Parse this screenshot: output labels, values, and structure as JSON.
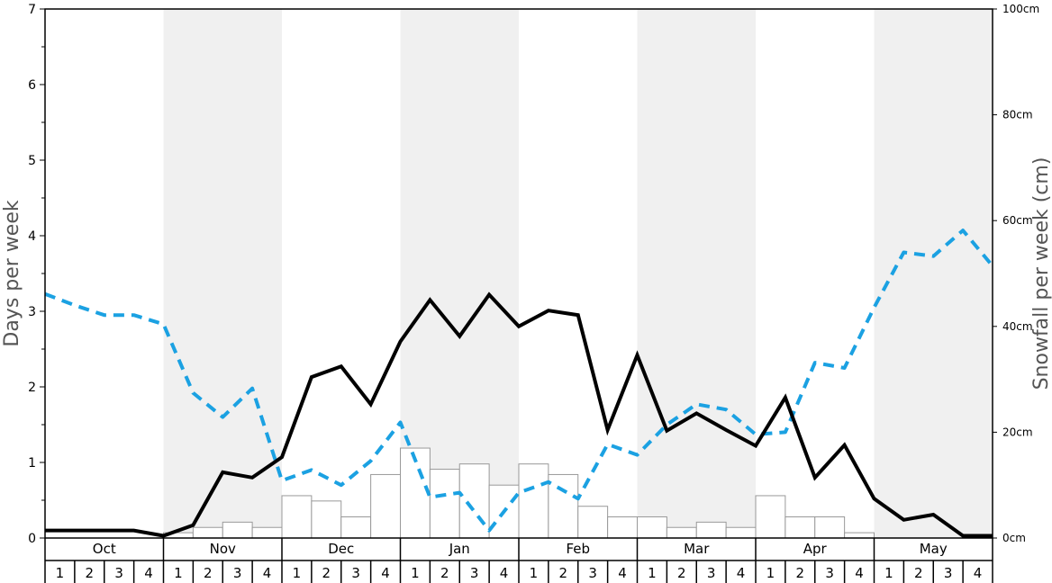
{
  "chart_data": {
    "type": "line",
    "title": "",
    "ylabel_left": "Days per week",
    "ylabel_right": "Snowfall per week (cm)",
    "ylim_left": [
      0,
      7
    ],
    "ylim_right": [
      0,
      100
    ],
    "yticks_left": [
      "0",
      "1",
      "2",
      "3",
      "4",
      "5",
      "6",
      "7"
    ],
    "yticks_right": [
      "0cm",
      "20cm",
      "40cm",
      "60cm",
      "80cm",
      "100cm"
    ],
    "months": [
      "Oct",
      "Nov",
      "Dec",
      "Jan",
      "Feb",
      "Mar",
      "Apr",
      "May"
    ],
    "weeks": [
      "1",
      "2",
      "3",
      "4"
    ],
    "shaded_months": [
      "Nov",
      "Jan",
      "Mar",
      "May"
    ],
    "colors": {
      "days_line": "#000000",
      "dashed_line": "#1ba1e2",
      "bars_fill": "#ffffff",
      "bars_stroke": "#999999",
      "shade": "#f0f0f0"
    },
    "series": [
      {
        "kind": "bars",
        "axis": "right",
        "values": [
          0,
          0,
          0,
          0,
          1,
          2,
          3,
          2,
          8,
          7,
          4,
          12,
          17,
          13,
          14,
          10,
          14,
          12,
          6,
          4,
          4,
          2,
          3,
          2,
          8,
          4,
          4,
          1,
          0,
          0,
          0,
          0
        ]
      },
      {
        "kind": "line",
        "axis": "left",
        "values": [
          0.1,
          0.1,
          0.1,
          0.1,
          0.03,
          0.17,
          0.87,
          0.8,
          1.07,
          2.13,
          2.27,
          1.77,
          2.6,
          3.15,
          2.67,
          3.22,
          2.8,
          3.01,
          2.95,
          1.43,
          2.42,
          1.42,
          1.65,
          1.43,
          1.22,
          1.86,
          0.8,
          1.23,
          0.52,
          0.24,
          0.31,
          0.03,
          0.03
        ]
      },
      {
        "kind": "dashed",
        "axis": "left",
        "values": [
          3.23,
          3.08,
          2.95,
          2.95,
          2.83,
          1.92,
          1.6,
          1.98,
          0.76,
          0.9,
          0.7,
          1.02,
          1.53,
          0.54,
          0.6,
          0.1,
          0.6,
          0.74,
          0.52,
          1.24,
          1.1,
          1.5,
          1.77,
          1.7,
          1.37,
          1.4,
          2.32,
          2.25,
          3.05,
          3.78,
          3.73,
          4.07,
          3.6
        ]
      }
    ]
  }
}
